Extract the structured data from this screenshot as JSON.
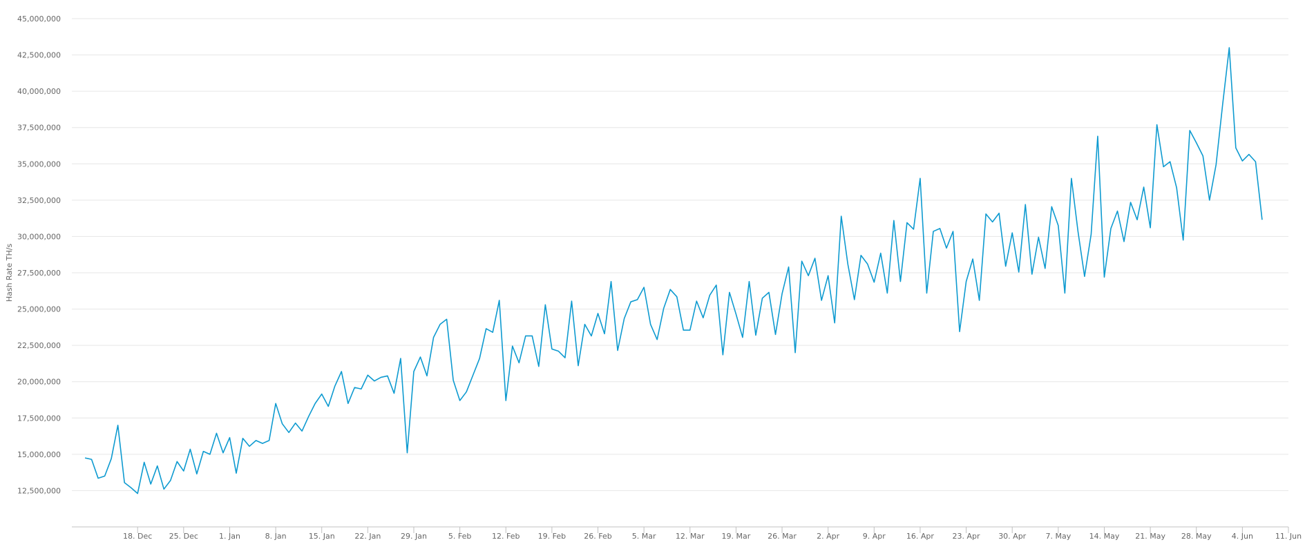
{
  "chart_data": {
    "type": "line",
    "title": "",
    "xlabel": "",
    "ylabel": "Hash Rate TH/s",
    "ylim": [
      10000000,
      45000000
    ],
    "yticks": [
      12500000,
      15000000,
      17500000,
      20000000,
      22500000,
      25000000,
      27500000,
      30000000,
      32500000,
      35000000,
      37500000,
      40000000,
      42500000,
      45000000
    ],
    "ytick_labels": [
      "12,500,000",
      "15,000,000",
      "17,500,000",
      "20,000,000",
      "22,500,000",
      "25,000,000",
      "27,500,000",
      "30,000,000",
      "32,500,000",
      "35,000,000",
      "37,500,000",
      "40,000,000",
      "42,500,000",
      "45,000,000"
    ],
    "xlim": [
      "2017-12-08",
      "2018-06-11"
    ],
    "xticks": [
      "2017-12-18",
      "2017-12-25",
      "2018-01-01",
      "2018-01-08",
      "2018-01-15",
      "2018-01-22",
      "2018-01-29",
      "2018-02-05",
      "2018-02-12",
      "2018-02-19",
      "2018-02-26",
      "2018-03-05",
      "2018-03-12",
      "2018-03-19",
      "2018-03-26",
      "2018-04-02",
      "2018-04-09",
      "2018-04-16",
      "2018-04-23",
      "2018-04-30",
      "2018-05-07",
      "2018-05-14",
      "2018-05-21",
      "2018-05-28",
      "2018-06-04",
      "2018-06-11"
    ],
    "xtick_labels": [
      "18. Dec",
      "25. Dec",
      "1. Jan",
      "8. Jan",
      "15. Jan",
      "22. Jan",
      "29. Jan",
      "5. Feb",
      "12. Feb",
      "19. Feb",
      "26. Feb",
      "5. Mar",
      "12. Mar",
      "19. Mar",
      "26. Mar",
      "2. Apr",
      "9. Apr",
      "16. Apr",
      "23. Apr",
      "30. Apr",
      "7. May",
      "14. May",
      "21. May",
      "28. May",
      "4. Jun",
      "11. Jun"
    ],
    "grid": true,
    "color": "#0d9ad0",
    "series": [
      {
        "start_date": "2017-12-10",
        "step_days": 1,
        "values": [
          14750000,
          14650000,
          13350000,
          13500000,
          14700000,
          17000000,
          13050000,
          12700000,
          12300000,
          14450000,
          12950000,
          14200000,
          12600000,
          13200000,
          14500000,
          13850000,
          15350000,
          13650000,
          15200000,
          15000000,
          16450000,
          15100000,
          16150000,
          13700000,
          16100000,
          15550000,
          15950000,
          15750000,
          15950000,
          18500000,
          17100000,
          16500000,
          17150000,
          16600000,
          17600000,
          18500000,
          19150000,
          18300000,
          19700000,
          20700000,
          18500000,
          19600000,
          19500000,
          20450000,
          20050000,
          20300000,
          20400000,
          19200000,
          21600000,
          15100000,
          20700000,
          21700000,
          20400000,
          23050000,
          23950000,
          24300000,
          20100000,
          18700000,
          19300000,
          20450000,
          21600000,
          23650000,
          23400000,
          25600000,
          18700000,
          22450000,
          21300000,
          23150000,
          23150000,
          21050000,
          25300000,
          22250000,
          22100000,
          21650000,
          25550000,
          21100000,
          23950000,
          23150000,
          24700000,
          23300000,
          26900000,
          22150000,
          24350000,
          25500000,
          25650000,
          26500000,
          23950000,
          22900000,
          25050000,
          26350000,
          25850000,
          23550000,
          23550000,
          25550000,
          24400000,
          25950000,
          26650000,
          21850000,
          26150000,
          24650000,
          23050000,
          26900000,
          23200000,
          25750000,
          26150000,
          23250000,
          26050000,
          27900000,
          22000000,
          28300000,
          27300000,
          28500000,
          25600000,
          27300000,
          24050000,
          31400000,
          28100000,
          25650000,
          28700000,
          28100000,
          26850000,
          28850000,
          26100000,
          31100000,
          26900000,
          30950000,
          30500000,
          34000000,
          26100000,
          30350000,
          30550000,
          29200000,
          30350000,
          23450000,
          26900000,
          28450000,
          25600000,
          31550000,
          31000000,
          31600000,
          27950000,
          30250000,
          27550000,
          32200000,
          27400000,
          29950000,
          27800000,
          32050000,
          30750000,
          26100000,
          34000000,
          30350000,
          27250000,
          30150000,
          36900000,
          27200000,
          30550000,
          31750000,
          29650000,
          32350000,
          31150000,
          33400000,
          30600000,
          37700000,
          34800000,
          35150000,
          33350000,
          29750000,
          37300000,
          36450000,
          35550000,
          32500000,
          34950000,
          39100000,
          43000000,
          36100000,
          35200000,
          35650000,
          35150000,
          31150000
        ]
      }
    ]
  }
}
